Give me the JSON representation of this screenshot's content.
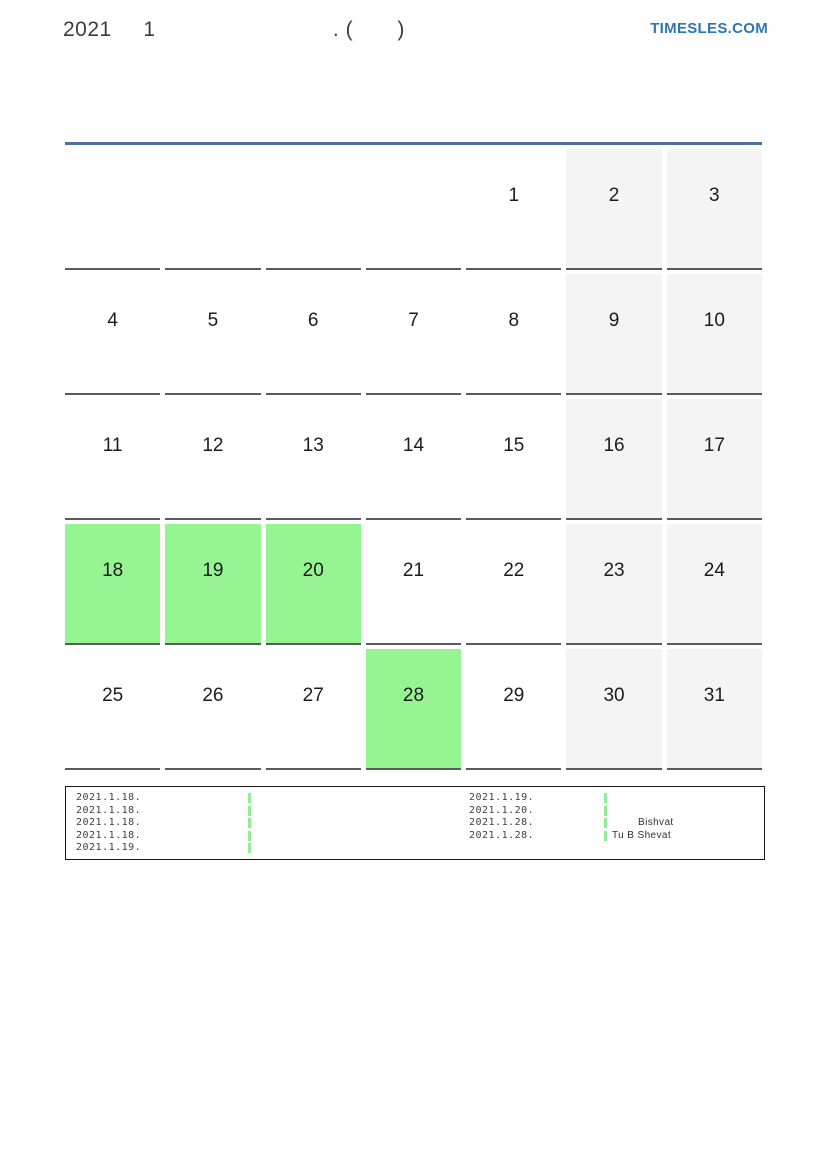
{
  "header": {
    "title": "2021     1                            . (       )",
    "brand": "TIMESLES.COM"
  },
  "calendar": {
    "weeks": [
      [
        "",
        "",
        "",
        "",
        "1",
        "2",
        "3"
      ],
      [
        "4",
        "5",
        "6",
        "7",
        "8",
        "9",
        "10"
      ],
      [
        "11",
        "12",
        "13",
        "14",
        "15",
        "16",
        "17"
      ],
      [
        "18",
        "19",
        "20",
        "21",
        "22",
        "23",
        "24"
      ],
      [
        "25",
        "26",
        "27",
        "28",
        "29",
        "30",
        "31"
      ]
    ],
    "highlighted_days": [
      "18",
      "19",
      "20",
      "28"
    ],
    "weekend_columns": [
      6,
      7
    ],
    "colors": {
      "top_rule": "#4b6f9f",
      "cell_rule": "#5a5a5a",
      "weekend_bg": "#f4f4f4",
      "highlight_green": "#97f492",
      "marker_green": "#8fef8f",
      "brand_blue": "#2e75b5"
    }
  },
  "legend": {
    "left": [
      {
        "date": "2021.1.18.",
        "label": ""
      },
      {
        "date": "2021.1.18.",
        "label": ""
      },
      {
        "date": "2021.1.18.",
        "label": ""
      },
      {
        "date": "2021.1.18.",
        "label": ""
      },
      {
        "date": "2021.1.19.",
        "label": ""
      }
    ],
    "right": [
      {
        "date": "2021.1.19.",
        "label": ""
      },
      {
        "date": "2021.1.20.",
        "label": ""
      },
      {
        "date": "2021.1.28.",
        "label": "Bishvat"
      },
      {
        "date": "2021.1.28.",
        "label": "Tu B Shevat"
      }
    ]
  }
}
